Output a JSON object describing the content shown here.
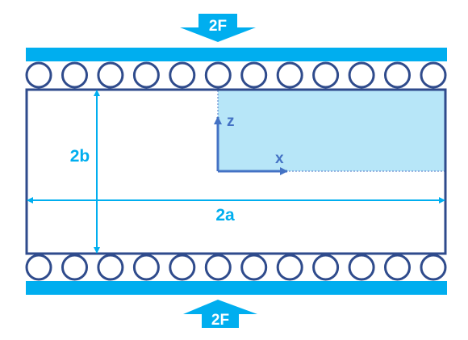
{
  "labels": {
    "force_top": "2F",
    "force_bottom": "2F",
    "height": "2b",
    "width": "2a",
    "axis_x": "x",
    "axis_z": "z"
  },
  "colors": {
    "accent": "#00AEEF",
    "frame": "#2F4B8C",
    "axis": "#4472C4",
    "quadrant_fill": "#B7E6F8",
    "white": "#FFFFFF"
  },
  "roller_count": 12
}
